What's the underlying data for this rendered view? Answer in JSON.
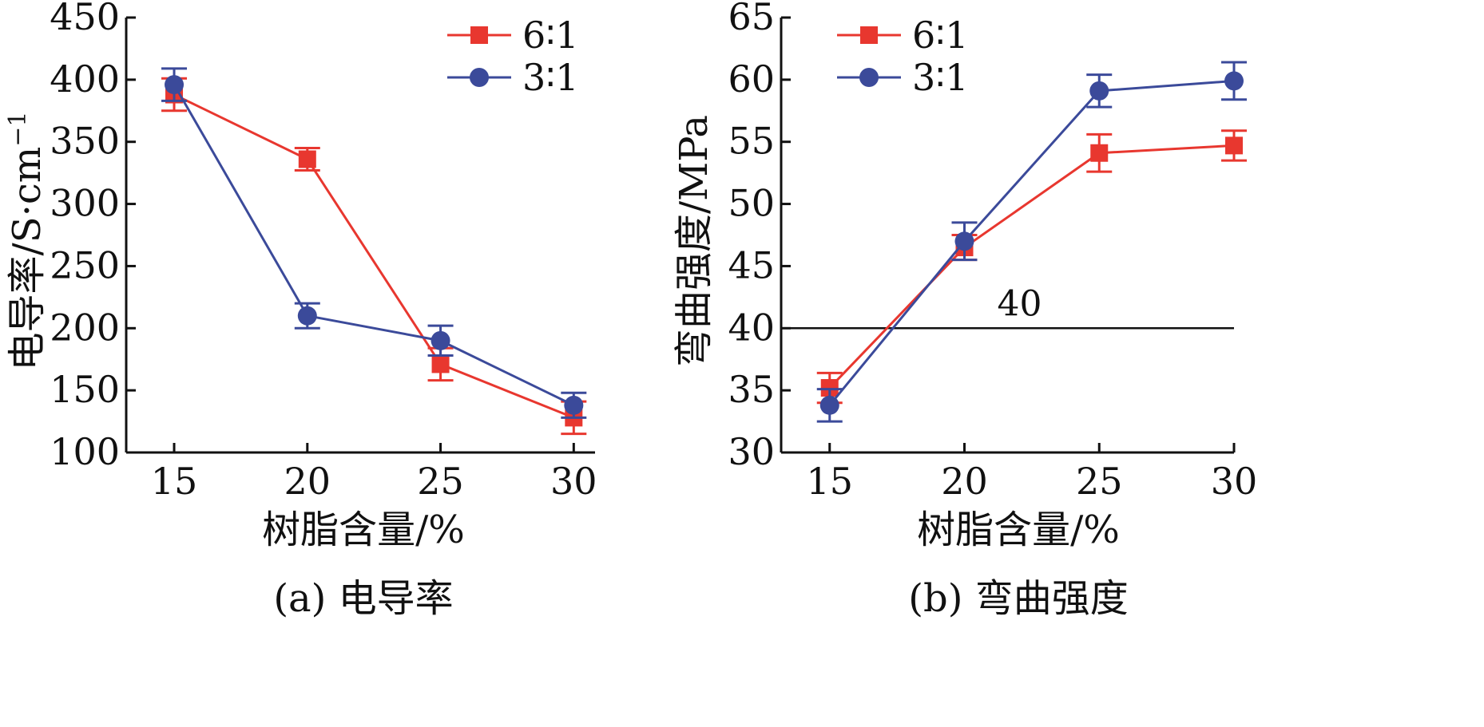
{
  "chart_data": [
    {
      "type": "line",
      "ylabel_main": "电导率/S·cm",
      "ylabel_sup": "−1",
      "xlabel": "树脂含量/%",
      "caption": "(a) 电导率",
      "x": [
        15,
        20,
        25,
        30
      ],
      "xlim": [
        13.2,
        30.8
      ],
      "ylim": [
        100,
        450
      ],
      "xticks": [
        "15",
        "20",
        "25",
        "30"
      ],
      "yticks": [
        "100",
        "150",
        "200",
        "250",
        "300",
        "350",
        "400",
        "450"
      ],
      "legend_position": "top-right",
      "series": [
        {
          "name": "6∶1",
          "color": "#e8372f",
          "marker": "square",
          "values": [
            388,
            336,
            171,
            128
          ],
          "errors": [
            13,
            9,
            13,
            13
          ]
        },
        {
          "name": "3∶1",
          "color": "#3b4a9a",
          "marker": "circle",
          "values": [
            396,
            210,
            190,
            138
          ],
          "errors": [
            13,
            10,
            12,
            10
          ]
        }
      ]
    },
    {
      "type": "line",
      "ylabel": "弯曲强度/MPa",
      "xlabel": "树脂含量/%",
      "caption": "(b) 弯曲强度",
      "x": [
        15,
        20,
        25,
        30
      ],
      "xlim": [
        13.2,
        30.0
      ],
      "ylim": [
        30,
        65
      ],
      "xticks": [
        "15",
        "20",
        "25",
        "30"
      ],
      "yticks": [
        "30",
        "35",
        "40",
        "45",
        "50",
        "55",
        "60",
        "65"
      ],
      "legend_position": "top-left",
      "reference_line": {
        "y": 40,
        "label": "40"
      },
      "series": [
        {
          "name": "6∶1",
          "color": "#e8372f",
          "marker": "square",
          "values": [
            35.2,
            46.5,
            54.1,
            54.7
          ],
          "errors": [
            1.2,
            1.0,
            1.5,
            1.2
          ]
        },
        {
          "name": "3∶1",
          "color": "#3b4a9a",
          "marker": "circle",
          "values": [
            33.8,
            47.0,
            59.1,
            59.9
          ],
          "errors": [
            1.3,
            1.5,
            1.3,
            1.5
          ]
        }
      ]
    }
  ]
}
